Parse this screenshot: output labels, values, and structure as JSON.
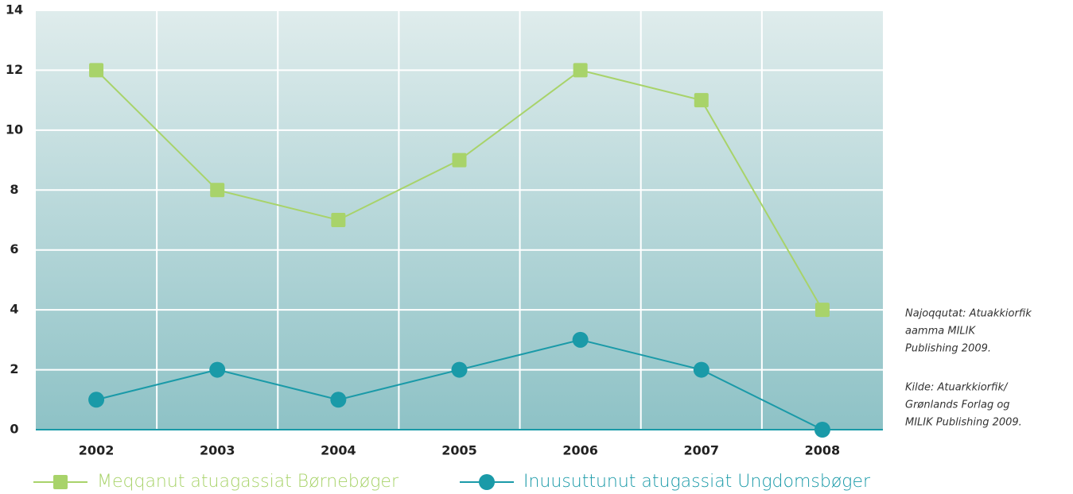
{
  "chart_data": {
    "type": "line",
    "categories": [
      "2002",
      "2003",
      "2004",
      "2005",
      "2006",
      "2007",
      "2008"
    ],
    "series": [
      {
        "name": "Meqqanut atuagassiat Børnebøger",
        "color": "#a8d36a",
        "marker": "square",
        "values": [
          12,
          8,
          7,
          9,
          12,
          11,
          4
        ]
      },
      {
        "name": "Inuusuttunut atugassiat Ungdomsbøger",
        "color": "#1a9aa8",
        "marker": "circle",
        "values": [
          1,
          2,
          1,
          2,
          3,
          2,
          0
        ]
      }
    ],
    "ylim": [
      0,
      14
    ],
    "yticks": [
      0,
      2,
      4,
      6,
      8,
      10,
      12,
      14
    ],
    "grid": true,
    "annotations": [
      "Najoqqutat: Atuakkiorfik",
      "aamma MILIK",
      "Publishing 2009.",
      "Kilde: Atuarkkiorfik/",
      "Grønlands Forlag og",
      "MILIK Publishing 2009."
    ]
  }
}
